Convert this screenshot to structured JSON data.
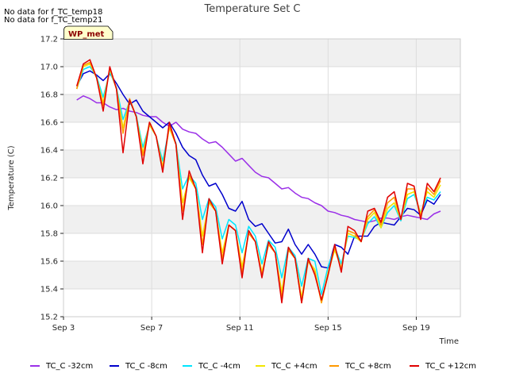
{
  "notes": [
    "No data for f_TC_temp18",
    "No data for f_TC_temp21"
  ],
  "badge": {
    "label": "WP_met",
    "fill": "#ffffcc",
    "text_color": "#8b0000"
  },
  "chart_data": {
    "type": "line",
    "title": "Temperature Set C",
    "xlabel": "Time",
    "ylabel": "Temperature (C)",
    "x_unit": "days",
    "xlim": [
      "Sep 3",
      "Sep 21"
    ],
    "ylim": [
      15.2,
      17.2
    ],
    "yticks": [
      15.2,
      15.4,
      15.6,
      15.8,
      16.0,
      16.2,
      16.4,
      16.6,
      16.8,
      17.0,
      17.2
    ],
    "xticks": [
      {
        "label": "Sep 3",
        "day": 3
      },
      {
        "label": "Sep 7",
        "day": 7
      },
      {
        "label": "Sep 11",
        "day": 11
      },
      {
        "label": "Sep 15",
        "day": 15
      },
      {
        "label": "Sep 19",
        "day": 19
      }
    ],
    "grid": true,
    "banded_background": true,
    "legend_placement": "bottom",
    "series": [
      {
        "name": "TC_C -32cm",
        "color": "#9b30e8",
        "x": [
          3.6,
          3.9,
          4.2,
          4.5,
          4.8,
          5.1,
          5.4,
          5.7,
          6.0,
          6.3,
          6.6,
          6.9,
          7.2,
          7.5,
          7.8,
          8.1,
          8.4,
          8.7,
          9.0,
          9.3,
          9.6,
          9.9,
          10.2,
          10.5,
          10.8,
          11.1,
          11.4,
          11.7,
          12.0,
          12.3,
          12.6,
          12.9,
          13.2,
          13.5,
          13.8,
          14.1,
          14.4,
          14.7,
          15.0,
          15.3,
          15.6,
          15.9,
          16.2,
          16.5,
          16.8,
          17.1,
          17.4,
          17.7,
          18.0,
          18.3,
          18.6,
          18.9,
          19.2,
          19.5,
          19.8,
          20.1
        ],
        "y": [
          16.76,
          16.79,
          16.77,
          16.74,
          16.74,
          16.71,
          16.69,
          16.7,
          16.68,
          16.67,
          16.65,
          16.64,
          16.64,
          16.6,
          16.57,
          16.6,
          16.55,
          16.53,
          16.52,
          16.48,
          16.45,
          16.46,
          16.42,
          16.37,
          16.32,
          16.34,
          16.29,
          16.24,
          16.21,
          16.2,
          16.16,
          16.12,
          16.13,
          16.09,
          16.06,
          16.05,
          16.02,
          16.0,
          15.96,
          15.95,
          15.93,
          15.92,
          15.9,
          15.89,
          15.88,
          15.89,
          15.91,
          15.91,
          15.9,
          15.92,
          15.93,
          15.92,
          15.91,
          15.9,
          15.94,
          15.96
        ]
      },
      {
        "name": "TC_C -8cm",
        "color": "#0000cc",
        "x": [
          3.6,
          3.9,
          4.2,
          4.5,
          4.8,
          5.1,
          5.4,
          5.7,
          6.0,
          6.3,
          6.6,
          6.9,
          7.2,
          7.5,
          7.8,
          8.1,
          8.4,
          8.7,
          9.0,
          9.3,
          9.6,
          9.9,
          10.2,
          10.5,
          10.8,
          11.1,
          11.4,
          11.7,
          12.0,
          12.3,
          12.6,
          12.9,
          13.2,
          13.5,
          13.8,
          14.1,
          14.4,
          14.7,
          15.0,
          15.3,
          15.6,
          15.9,
          16.2,
          16.5,
          16.8,
          17.1,
          17.4,
          17.7,
          18.0,
          18.3,
          18.6,
          18.9,
          19.2,
          19.5,
          19.8,
          20.1
        ],
        "y": [
          16.86,
          16.95,
          16.97,
          16.94,
          16.9,
          16.95,
          16.88,
          16.8,
          16.73,
          16.76,
          16.68,
          16.64,
          16.6,
          16.56,
          16.6,
          16.52,
          16.42,
          16.36,
          16.33,
          16.22,
          16.14,
          16.16,
          16.08,
          15.98,
          15.96,
          16.03,
          15.9,
          15.85,
          15.87,
          15.8,
          15.73,
          15.74,
          15.83,
          15.72,
          15.65,
          15.72,
          15.65,
          15.56,
          15.55,
          15.72,
          15.7,
          15.65,
          15.78,
          15.78,
          15.78,
          15.85,
          15.88,
          15.87,
          15.86,
          15.92,
          15.98,
          15.97,
          15.93,
          16.04,
          16.01,
          16.08
        ]
      },
      {
        "name": "TC_C -4cm",
        "color": "#00e5ff",
        "x": [
          3.6,
          3.9,
          4.2,
          4.5,
          4.8,
          5.1,
          5.4,
          5.7,
          6.0,
          6.3,
          6.6,
          6.9,
          7.2,
          7.5,
          7.8,
          8.1,
          8.4,
          8.7,
          9.0,
          9.3,
          9.6,
          9.9,
          10.2,
          10.5,
          10.8,
          11.1,
          11.4,
          11.7,
          12.0,
          12.3,
          12.6,
          12.9,
          13.2,
          13.5,
          13.8,
          14.1,
          14.4,
          14.7,
          15.0,
          15.3,
          15.6,
          15.9,
          16.2,
          16.5,
          16.8,
          17.1,
          17.4,
          17.7,
          18.0,
          18.3,
          18.6,
          18.9,
          19.2,
          19.5,
          19.8,
          20.1
        ],
        "y": [
          16.84,
          16.98,
          17.0,
          16.93,
          16.78,
          16.96,
          16.85,
          16.62,
          16.75,
          16.65,
          16.42,
          16.58,
          16.5,
          16.32,
          16.56,
          16.45,
          16.12,
          16.22,
          16.16,
          15.9,
          16.05,
          15.99,
          15.76,
          15.9,
          15.86,
          15.66,
          15.85,
          15.78,
          15.58,
          15.75,
          15.7,
          15.48,
          15.7,
          15.64,
          15.42,
          15.62,
          15.6,
          15.36,
          15.56,
          15.7,
          15.58,
          15.78,
          15.77,
          15.75,
          15.87,
          15.92,
          15.84,
          15.95,
          16.0,
          15.89,
          16.05,
          16.08,
          15.95,
          16.06,
          16.04,
          16.1
        ]
      },
      {
        "name": "TC_C +4cm",
        "color": "#f2e600",
        "x": [
          3.6,
          3.9,
          4.2,
          4.5,
          4.8,
          5.1,
          5.4,
          5.7,
          6.0,
          6.3,
          6.6,
          6.9,
          7.2,
          7.5,
          7.8,
          8.1,
          8.4,
          8.7,
          9.0,
          9.3,
          9.6,
          9.9,
          10.2,
          10.5,
          10.8,
          11.1,
          11.4,
          11.7,
          12.0,
          12.3,
          12.6,
          12.9,
          13.2,
          13.5,
          13.8,
          14.1,
          14.4,
          14.7,
          15.0,
          15.3,
          15.6,
          15.9,
          16.2,
          16.5,
          16.8,
          17.1,
          17.4,
          17.7,
          18.0,
          18.3,
          18.6,
          18.9,
          19.2,
          19.5,
          19.8,
          20.1
        ],
        "y": [
          16.84,
          17.0,
          17.02,
          16.92,
          16.74,
          16.98,
          16.84,
          16.56,
          16.76,
          16.64,
          16.38,
          16.58,
          16.5,
          16.28,
          16.56,
          16.44,
          16.02,
          16.2,
          16.12,
          15.78,
          16.02,
          15.96,
          15.66,
          15.86,
          15.82,
          15.56,
          15.8,
          15.74,
          15.52,
          15.72,
          15.66,
          15.38,
          15.68,
          15.62,
          15.34,
          15.6,
          15.54,
          15.3,
          15.52,
          15.68,
          15.55,
          15.8,
          15.78,
          15.74,
          15.9,
          15.95,
          15.84,
          15.98,
          16.02,
          15.9,
          16.08,
          16.1,
          15.94,
          16.1,
          16.06,
          16.15
        ]
      },
      {
        "name": "TC_C +8cm",
        "color": "#ff9900",
        "x": [
          3.6,
          3.9,
          4.2,
          4.5,
          4.8,
          5.1,
          5.4,
          5.7,
          6.0,
          6.3,
          6.6,
          6.9,
          7.2,
          7.5,
          7.8,
          8.1,
          8.4,
          8.7,
          9.0,
          9.3,
          9.6,
          9.9,
          10.2,
          10.5,
          10.8,
          11.1,
          11.4,
          11.7,
          12.0,
          12.3,
          12.6,
          12.9,
          13.2,
          13.5,
          13.8,
          14.1,
          14.4,
          14.7,
          15.0,
          15.3,
          15.6,
          15.9,
          16.2,
          16.5,
          16.8,
          17.1,
          17.4,
          17.7,
          18.0,
          18.3,
          18.6,
          18.9,
          19.2,
          19.5,
          19.8,
          20.1
        ],
        "y": [
          16.84,
          17.01,
          17.03,
          16.92,
          16.72,
          16.99,
          16.84,
          16.52,
          16.77,
          16.64,
          16.36,
          16.6,
          16.5,
          16.26,
          16.57,
          16.44,
          15.96,
          16.22,
          16.12,
          15.72,
          16.03,
          15.96,
          15.62,
          15.86,
          15.82,
          15.52,
          15.8,
          15.74,
          15.5,
          15.72,
          15.66,
          15.34,
          15.68,
          15.62,
          15.3,
          15.6,
          15.52,
          15.3,
          15.5,
          15.7,
          15.54,
          15.82,
          15.8,
          15.74,
          15.92,
          15.97,
          15.86,
          16.02,
          16.06,
          15.9,
          16.12,
          16.12,
          15.92,
          16.13,
          16.08,
          16.18
        ]
      },
      {
        "name": "TC_C +12cm",
        "color": "#e00000",
        "x": [
          3.6,
          3.9,
          4.2,
          4.5,
          4.8,
          5.1,
          5.4,
          5.7,
          6.0,
          6.3,
          6.6,
          6.9,
          7.2,
          7.5,
          7.8,
          8.1,
          8.4,
          8.7,
          9.0,
          9.3,
          9.6,
          9.9,
          10.2,
          10.5,
          10.8,
          11.1,
          11.4,
          11.7,
          12.0,
          12.3,
          12.6,
          12.9,
          13.2,
          13.5,
          13.8,
          14.1,
          14.4,
          14.7,
          15.0,
          15.3,
          15.6,
          15.9,
          16.2,
          16.5,
          16.8,
          17.1,
          17.4,
          17.7,
          18.0,
          18.3,
          18.6,
          18.9,
          19.2,
          19.5,
          19.8,
          20.1
        ],
        "y": [
          16.86,
          17.02,
          17.05,
          16.92,
          16.68,
          17.0,
          16.84,
          16.38,
          16.76,
          16.64,
          16.3,
          16.6,
          16.5,
          16.24,
          16.6,
          16.44,
          15.9,
          16.25,
          16.12,
          15.66,
          16.05,
          15.96,
          15.58,
          15.86,
          15.82,
          15.48,
          15.82,
          15.74,
          15.48,
          15.74,
          15.66,
          15.3,
          15.7,
          15.62,
          15.3,
          15.62,
          15.5,
          15.32,
          15.5,
          15.72,
          15.52,
          15.85,
          15.82,
          15.74,
          15.96,
          15.98,
          15.88,
          16.06,
          16.1,
          15.9,
          16.16,
          16.14,
          15.9,
          16.16,
          16.1,
          16.2
        ]
      }
    ]
  }
}
